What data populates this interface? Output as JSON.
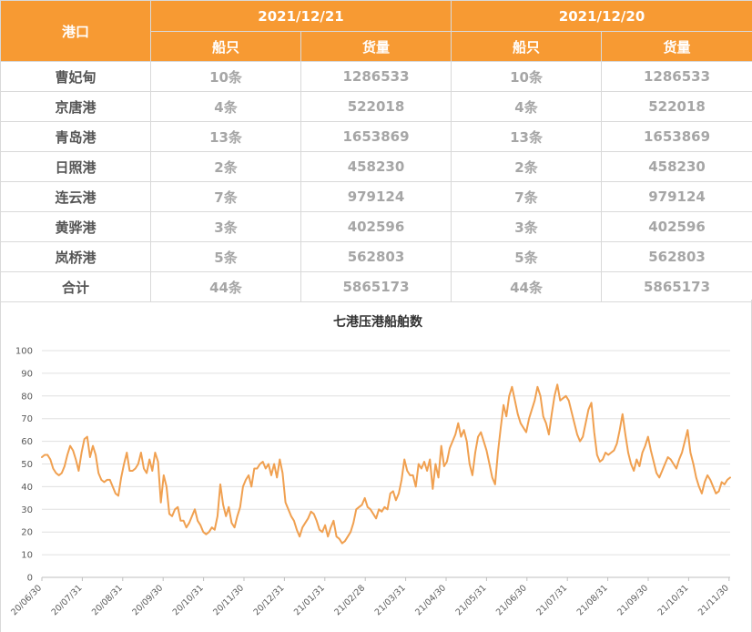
{
  "table": {
    "port_header": "港口",
    "dates": [
      "2021/12/21",
      "2021/12/20"
    ],
    "sub_headers": [
      "船只",
      "货量",
      "船只",
      "货量"
    ],
    "rows": [
      {
        "port": "曹妃甸",
        "cells": [
          "10条",
          "1286533",
          "10条",
          "1286533"
        ]
      },
      {
        "port": "京唐港",
        "cells": [
          "4条",
          "522018",
          "4条",
          "522018"
        ]
      },
      {
        "port": "青岛港",
        "cells": [
          "13条",
          "1653869",
          "13条",
          "1653869"
        ]
      },
      {
        "port": "日照港",
        "cells": [
          "2条",
          "458230",
          "2条",
          "458230"
        ]
      },
      {
        "port": "连云港",
        "cells": [
          "7条",
          "979124",
          "7条",
          "979124"
        ]
      },
      {
        "port": "黄骅港",
        "cells": [
          "3条",
          "402596",
          "3条",
          "402596"
        ]
      },
      {
        "port": "岚桥港",
        "cells": [
          "5条",
          "562803",
          "5条",
          "562803"
        ]
      },
      {
        "port": "合计",
        "cells": [
          "44条",
          "5865173",
          "44条",
          "5865173"
        ]
      }
    ]
  },
  "chart_data": {
    "type": "line",
    "title": "七港压港船舶数",
    "ylim": [
      0,
      100
    ],
    "yticks": [
      0,
      10,
      20,
      30,
      40,
      50,
      60,
      70,
      80,
      90,
      100
    ],
    "xticks": [
      "20/06/30",
      "20/07/31",
      "20/08/31",
      "20/09/30",
      "20/10/31",
      "20/11/30",
      "20/12/31",
      "21/01/31",
      "21/02/28",
      "21/03/31",
      "21/04/30",
      "21/05/31",
      "21/06/30",
      "21/07/31",
      "21/08/31",
      "21/09/30",
      "21/10/31",
      "21/11/30"
    ],
    "grid": true,
    "legend": "none",
    "color": "#f0a050",
    "series": [
      {
        "values": [
          53,
          54,
          54,
          52,
          48,
          46,
          45,
          46,
          49,
          54,
          58,
          56,
          52,
          47,
          55,
          61,
          62,
          53,
          58,
          54,
          46,
          43,
          42,
          43,
          43,
          40,
          37,
          36,
          44,
          50,
          55,
          47,
          47,
          48,
          50,
          55,
          48,
          46,
          52,
          47,
          55,
          51,
          33,
          45,
          40,
          28,
          27,
          30,
          31,
          25,
          25,
          22,
          24,
          27,
          30,
          25,
          23,
          20,
          19,
          20,
          22,
          21,
          27,
          41,
          32,
          27,
          31,
          24,
          22,
          27,
          31,
          40,
          43,
          45,
          40,
          48,
          48,
          50,
          51,
          48,
          50,
          45,
          50,
          44,
          52,
          46,
          33,
          30,
          27,
          25,
          21,
          18,
          22,
          24,
          26,
          29,
          28,
          25,
          21,
          20,
          23,
          18,
          22,
          25,
          18,
          17,
          15,
          16,
          18,
          20,
          24,
          30,
          31,
          32,
          35,
          31,
          30,
          28,
          26,
          30,
          29,
          31,
          30,
          37,
          38,
          34,
          37,
          43,
          52,
          47,
          45,
          45,
          40,
          50,
          48,
          51,
          47,
          52,
          39,
          50,
          44,
          58,
          49,
          51,
          57,
          60,
          63,
          68,
          62,
          65,
          60,
          50,
          45,
          55,
          62,
          64,
          60,
          56,
          50,
          44,
          41,
          55,
          66,
          76,
          71,
          80,
          84,
          78,
          72,
          68,
          66,
          64,
          70,
          74,
          78,
          84,
          80,
          71,
          68,
          63,
          72,
          80,
          85,
          78,
          79,
          80,
          78,
          73,
          68,
          63,
          60,
          62,
          68,
          74,
          77,
          64,
          54,
          51,
          52,
          55,
          54,
          55,
          56,
          59,
          65,
          72,
          63,
          55,
          50,
          47,
          52,
          49,
          55,
          58,
          62,
          56,
          51,
          46,
          44,
          47,
          50,
          53,
          52,
          50,
          48,
          52,
          55,
          60,
          65,
          55,
          50,
          44,
          40,
          37,
          42,
          45,
          43,
          40,
          37,
          38,
          42,
          41,
          43,
          44
        ]
      }
    ]
  }
}
